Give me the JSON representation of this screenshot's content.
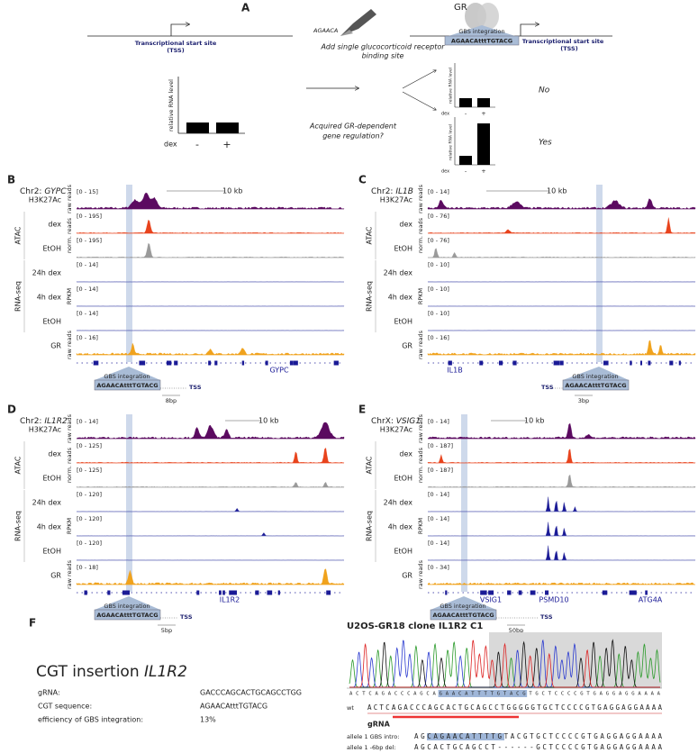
{
  "panel_a": {
    "label": "A",
    "tss_line1": "Transcriptional start site",
    "tss_line2": "(TSS)",
    "pen_text": "AGAACA",
    "add_line1": "Add single glucocorticoid receptor",
    "add_line2": "binding site",
    "gr": "GR",
    "gbs": "GBS integration",
    "gbs_seq": "AGAACAtttTGTACG",
    "tss2_line1": "Transcriptional start site",
    "tss2_line2": "(TSS)",
    "y_label": "relative RNA level",
    "dex": "dex",
    "minus": "-",
    "plus": "+",
    "question_line1": "Acquired GR-dependent",
    "question_line2": "gene regulation?",
    "no": "No",
    "yes": "Yes"
  },
  "panels": [
    {
      "label": "B",
      "chrom": "Chr2:",
      "gene": "GYPC",
      "scale": "10 kb",
      "tracks": [
        {
          "name": "H3K27Ac",
          "range": "[0 - 15]",
          "color": "#5b0a60"
        },
        {
          "name": "dex",
          "range": "[0 - 195]",
          "color": "#e8431c"
        },
        {
          "name": "EtOH",
          "range": "[0 - 195]",
          "color": "#9a9a9a"
        },
        {
          "name": "24h dex",
          "range": "[0 - 14]",
          "color": "#1a1a96"
        },
        {
          "name": "4h dex",
          "range": "[0 - 14]",
          "color": "#1a1a96"
        },
        {
          "name": "EtOH",
          "range": "[0 - 14]",
          "color": "#1a1a96"
        },
        {
          "name": "GR",
          "range": "[0 - 16]",
          "color": "#f0a21c"
        }
      ],
      "units": [
        "raw reads",
        "norm. reads",
        "RPKM",
        "raw reads"
      ],
      "groups": [
        "ATAC",
        "RNA-seq"
      ],
      "gene_labels": [
        "GYPC"
      ],
      "gbs": "GBS integration",
      "gbs_seq": "AGAACAtttTGTACG",
      "tss": "TSS",
      "bp_scale": "8bp"
    },
    {
      "label": "C",
      "chrom": "Chr2:",
      "gene": "IL1B",
      "scale": "10 kb",
      "tracks": [
        {
          "name": "H3K27Ac",
          "range": "[0 - 14]",
          "color": "#5b0a60"
        },
        {
          "name": "dex",
          "range": "[0 - 76]",
          "color": "#e8431c"
        },
        {
          "name": "EtOH",
          "range": "[0 - 76]",
          "color": "#9a9a9a"
        },
        {
          "name": "24h dex",
          "range": "[0 - 10]",
          "color": "#1a1a96"
        },
        {
          "name": "4h dex",
          "range": "[0 - 10]",
          "color": "#1a1a96"
        },
        {
          "name": "EtOH",
          "range": "[0 - 10]",
          "color": "#1a1a96"
        },
        {
          "name": "GR",
          "range": "[0 - 16]",
          "color": "#f0a21c"
        }
      ],
      "units": [
        "raw reads",
        "norm. reads",
        "RPKM",
        "raw reads"
      ],
      "groups": [
        "ATAC",
        "RNA-seq"
      ],
      "gene_labels": [
        "IL1B"
      ],
      "gbs": "GBS integration",
      "gbs_seq": "AGAACAtttTGTACG",
      "tss": "TSS",
      "bp_scale": "3bp"
    },
    {
      "label": "D",
      "chrom": "Chr2:",
      "gene": "IL1R2",
      "scale": "10 kb",
      "tracks": [
        {
          "name": "H3K27Ac",
          "range": "[0 - 14]",
          "color": "#5b0a60"
        },
        {
          "name": "dex",
          "range": "[0 - 125]",
          "color": "#e8431c"
        },
        {
          "name": "EtOH",
          "range": "[0 - 125]",
          "color": "#9a9a9a"
        },
        {
          "name": "24h dex",
          "range": "[0 - 120]",
          "color": "#1a1a96"
        },
        {
          "name": "4h dex",
          "range": "[0 - 120]",
          "color": "#1a1a96"
        },
        {
          "name": "EtOH",
          "range": "[0 - 120]",
          "color": "#1a1a96"
        },
        {
          "name": "GR",
          "range": "[0 - 18]",
          "color": "#f0a21c"
        }
      ],
      "units": [
        "raw reads",
        "norm. reads",
        "RPKM",
        "raw reads"
      ],
      "groups": [
        "ATAC",
        "RNA-seq"
      ],
      "gene_labels": [
        "IL1R2"
      ],
      "gbs": "GBS integration",
      "gbs_seq": "AGAACAtttTGTACG",
      "tss": "TSS",
      "bp_scale": "5bp"
    },
    {
      "label": "E",
      "chrom": "ChrX:",
      "gene": "VSIG1",
      "scale": "10 kb",
      "tracks": [
        {
          "name": "H3K27Ac",
          "range": "[0 - 14]",
          "color": "#5b0a60"
        },
        {
          "name": "dex",
          "range": "[0 - 187]",
          "color": "#e8431c"
        },
        {
          "name": "EtOH",
          "range": "[0 - 187]",
          "color": "#9a9a9a"
        },
        {
          "name": "24h dex",
          "range": "[0 - 14]",
          "color": "#1a1a96"
        },
        {
          "name": "4h dex",
          "range": "[0 - 14]",
          "color": "#1a1a96"
        },
        {
          "name": "EtOH",
          "range": "[0 - 14]",
          "color": "#1a1a96"
        },
        {
          "name": "GR",
          "range": "[0 - 34]",
          "color": "#f0a21c"
        }
      ],
      "units": [
        "raw reads",
        "norm. reads",
        "RPKM",
        "raw reads"
      ],
      "groups": [
        "ATAC",
        "RNA-seq"
      ],
      "gene_labels": [
        "VSIG1",
        "PSMD10",
        "ATG4A"
      ],
      "gbs": "GBS integration",
      "gbs_seq": "AGAACAtttTGTACG",
      "tss": "TSS",
      "bp_scale": "50bp"
    }
  ],
  "panel_f": {
    "label": "F",
    "title_prefix": "CGT insertion",
    "title_gene": "IL1R2",
    "rows": [
      [
        "gRNA:",
        "GACCCAGCACTGCAGCCTGG"
      ],
      [
        "CGT sequence:",
        "AGAACAtttTGTACG"
      ],
      [
        "efficiency of GBS integration:",
        "13%"
      ]
    ],
    "clone_title": "U2OS-GR18 clone IL1R2 C1",
    "trace_seq": "ACTCAGACCCAGCAGAACATTTTGTACGTGCTCCCCGTGAGGAGGAAAA",
    "wt": "wt",
    "wt_seq": "ACTCAGACCCAGCACTGCAGCCTGGGGGTGCTCCCCGTGAGGAGGAAAA",
    "grna": "gRNA",
    "alleles": [
      [
        "allele 1 GBS intro:",
        "AGCAGAACATTTTGTACGTGCTCCCCGTGAGGAGGAAAA"
      ],
      [
        "allele 1 -6bp del:",
        "AGCACTGCAGCCT------GCTCCCCGTGAGGAGGAAAA"
      ]
    ]
  }
}
